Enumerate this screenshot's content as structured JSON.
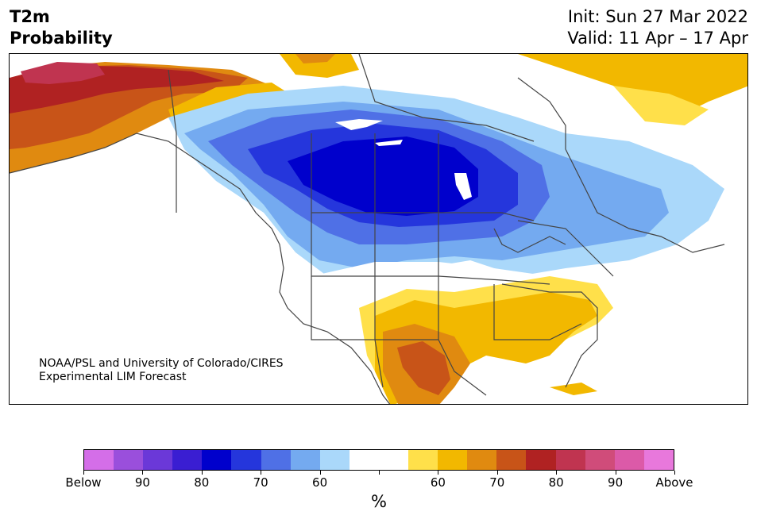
{
  "header": {
    "title_line1": "T2m",
    "title_line2": "Probability",
    "init": "Init: Sun 27 Mar 2022",
    "valid": "Valid: 11 Apr – 17 Apr"
  },
  "credit": {
    "line1": "NOAA/PSL and University of Colorado/CIRES",
    "line2": "Experimental LIM Forecast"
  },
  "colorbar": {
    "colors": [
      "#d46ee8",
      "#9a4fdc",
      "#6b38d8",
      "#3a1ed2",
      "#0000cc",
      "#2536dc",
      "#4f70e6",
      "#74aaf0",
      "#aad8fa",
      "#ffffff",
      "#ffffff",
      "#ffe04a",
      "#f2b800",
      "#e08a10",
      "#c85418",
      "#b02222",
      "#c03450",
      "#d04c7a",
      "#dc5aa8",
      "#e878dc"
    ],
    "tick_labels": [
      "Below",
      "90",
      "80",
      "70",
      "60",
      "",
      "60",
      "70",
      "80",
      "90",
      "Above"
    ],
    "unit_label": "%"
  },
  "map": {
    "colors": {
      "below90": "#9a4fdc",
      "below80": "#0000cc",
      "below75": "#2536dc",
      "below70": "#4f70e6",
      "below65": "#74aaf0",
      "below60": "#aad8fa",
      "above55": "#ffe04a",
      "above60": "#f2b800",
      "above65": "#e08a10",
      "above70": "#c85418",
      "above75": "#b02222",
      "above80": "#c03450",
      "border": "#444444"
    }
  }
}
